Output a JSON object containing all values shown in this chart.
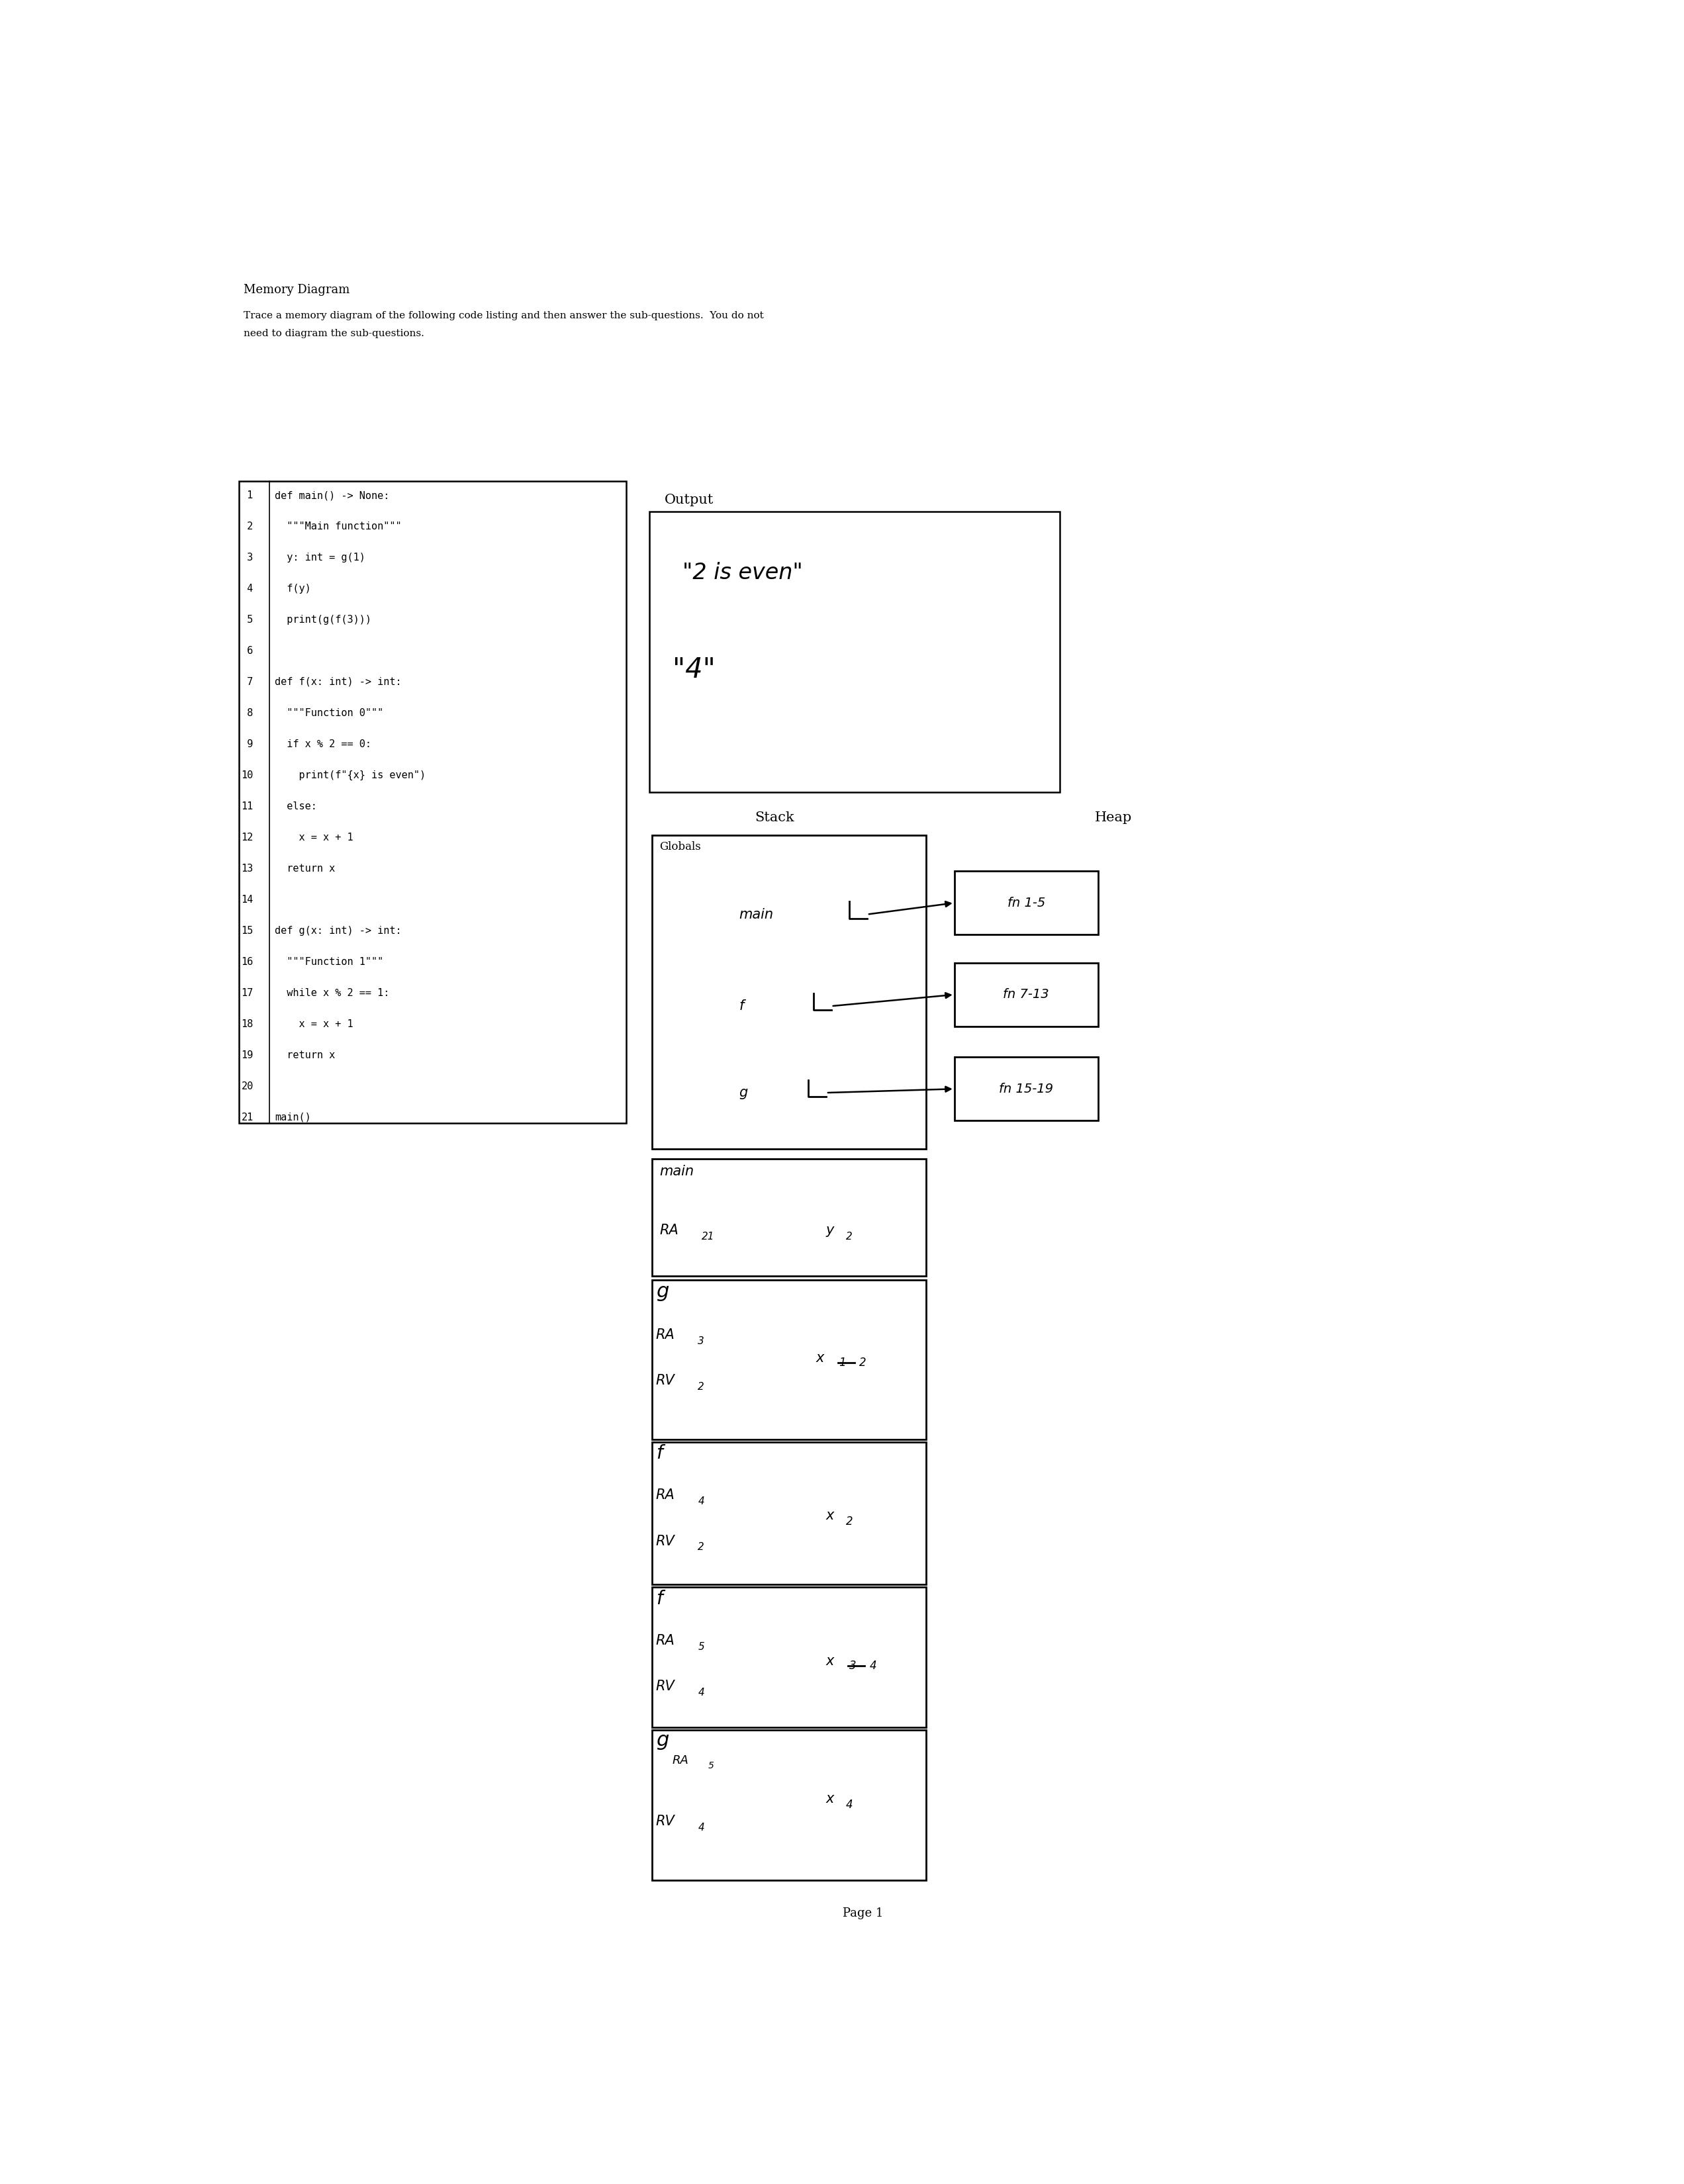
{
  "title": "Memory Diagram",
  "subtitle_line1": "Trace a memory diagram of the following code listing and then answer the sub-questions.  You do not",
  "subtitle_line2": "need to diagram the sub-questions.",
  "page_label": "Page 1",
  "bg": "#ffffff",
  "code_lines": [
    [
      " 1",
      "def main() -> None:"
    ],
    [
      " 2",
      "  \"\"\"Main function\"\"\""
    ],
    [
      " 3",
      "  y: int = g(1)"
    ],
    [
      " 4",
      "  f(y)"
    ],
    [
      " 5",
      "  print(g(f(3)))"
    ],
    [
      " 6",
      ""
    ],
    [
      " 7",
      "def f(x: int) -> int:"
    ],
    [
      " 8",
      "  \"\"\"Function 0\"\"\""
    ],
    [
      " 9",
      "  if x % 2 == 0:"
    ],
    [
      "10",
      "    print(f\"{x} is even\")"
    ],
    [
      "11",
      "  else:"
    ],
    [
      "12",
      "    x = x + 1"
    ],
    [
      "13",
      "  return x"
    ],
    [
      "14",
      ""
    ],
    [
      "15",
      "def g(x: int) -> int:"
    ],
    [
      "16",
      "  \"\"\"Function 1\"\"\""
    ],
    [
      "17",
      "  while x % 2 == 1:"
    ],
    [
      "18",
      "    x = x + 1"
    ],
    [
      "19",
      "  return x"
    ],
    [
      "20",
      ""
    ],
    [
      "21",
      "main()"
    ]
  ]
}
